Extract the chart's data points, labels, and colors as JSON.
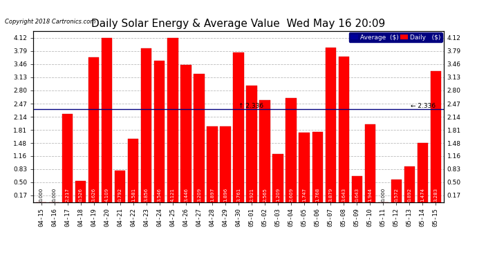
{
  "title": "Daily Solar Energy & Average Value  Wed May 16 20:09",
  "copyright": "Copyright 2018 Cartronics.com",
  "average_value": 2.336,
  "average_label": "2.336",
  "bar_color": "#FF0000",
  "avg_line_color": "#000080",
  "categories": [
    "04-15",
    "04-16",
    "04-17",
    "04-18",
    "04-19",
    "04-20",
    "04-21",
    "04-22",
    "04-23",
    "04-24",
    "04-25",
    "04-26",
    "04-27",
    "04-28",
    "04-29",
    "04-30",
    "05-01",
    "05-02",
    "05-03",
    "05-04",
    "05-05",
    "05-06",
    "05-07",
    "05-08",
    "05-09",
    "05-10",
    "05-11",
    "05-12",
    "05-13",
    "05-14",
    "05-15"
  ],
  "values": [
    0.0,
    0.0,
    2.217,
    0.526,
    3.626,
    4.109,
    0.792,
    1.581,
    3.856,
    3.546,
    4.121,
    3.446,
    3.209,
    1.897,
    1.896,
    3.761,
    2.921,
    2.565,
    1.209,
    2.609,
    1.747,
    1.768,
    3.879,
    3.643,
    0.643,
    1.944,
    0.0,
    0.572,
    0.892,
    1.474,
    3.283
  ],
  "ylim": [
    0.0,
    4.29
  ],
  "yticks": [
    0.17,
    0.5,
    0.83,
    1.16,
    1.48,
    1.81,
    2.14,
    2.47,
    2.8,
    3.13,
    3.46,
    3.79,
    4.12
  ],
  "legend_avg_color": "#000099",
  "legend_daily_color": "#FF0000",
  "background_color": "#FFFFFF",
  "grid_color": "#BBBBBB",
  "title_fontsize": 11,
  "tick_fontsize": 6.5,
  "bar_width": 0.8
}
